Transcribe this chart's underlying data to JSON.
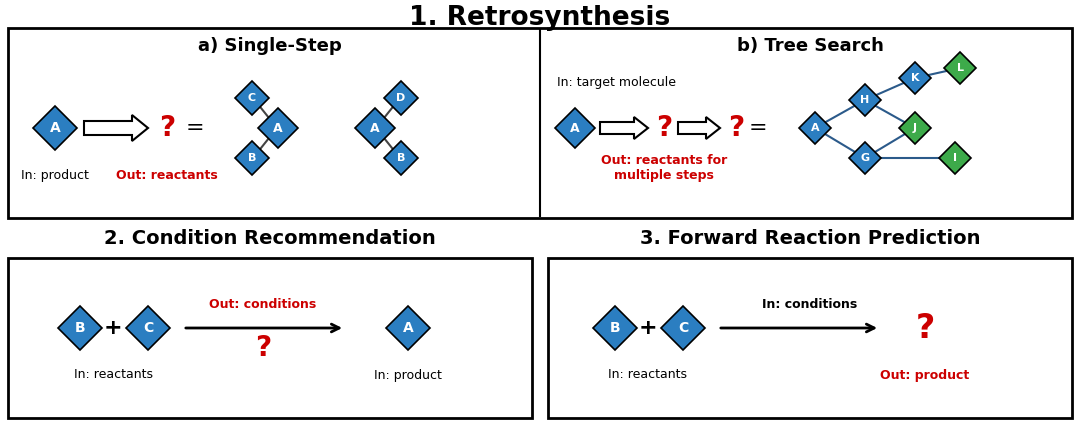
{
  "title": "1. Retrosynthesis",
  "title_fontsize": 19,
  "title_fontweight": "bold",
  "bg_color": "#ffffff",
  "blue_color": "#2B7EC1",
  "green_color": "#3DAA4A",
  "red_color": "#CC0000",
  "black_color": "#000000",
  "section2_title": "2. Condition Recommendation",
  "section3_title": "3. Forward Reaction Prediction",
  "sub_a_title": "a) Single-Step",
  "sub_b_title": "b) Tree Search",
  "label_fontsize": 9,
  "sub_fontsize": 13,
  "section_fontsize": 14
}
